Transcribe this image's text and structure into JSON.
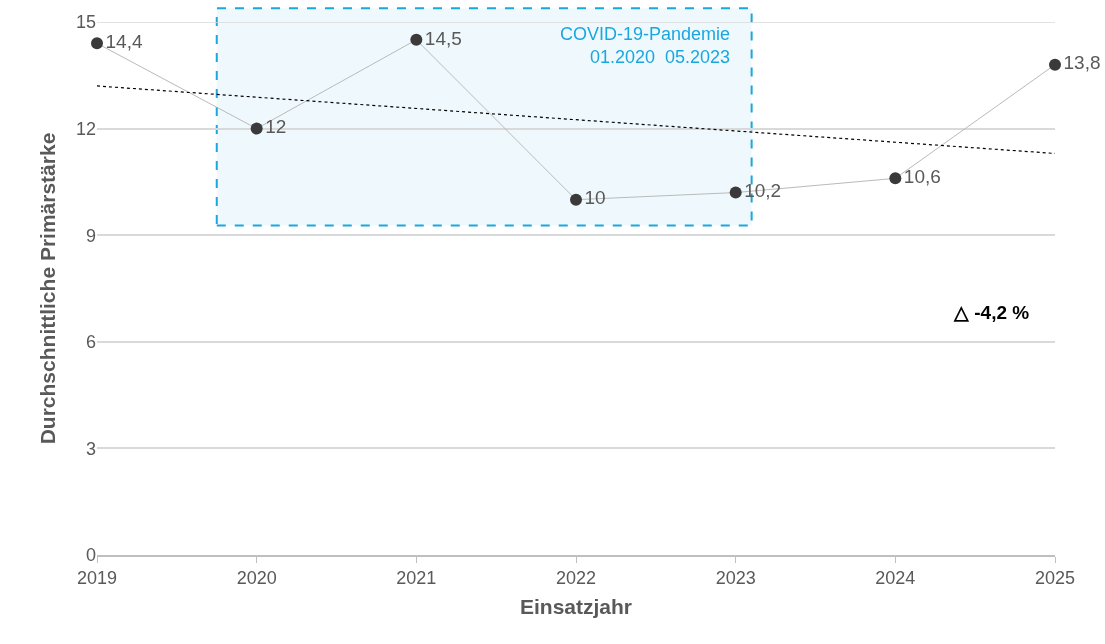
{
  "chart_data": {
    "type": "line",
    "xlabel": "Einsatzjahr",
    "ylabel": "Durchschnittliche Primärstärke",
    "x": [
      2019,
      2020,
      2021,
      2022,
      2023,
      2024,
      2025
    ],
    "xlim": [
      2019,
      2025
    ],
    "xticks": [
      2019,
      2020,
      2021,
      2022,
      2023,
      2024,
      2025
    ],
    "ylim": [
      0,
      15
    ],
    "yticks": [
      0,
      3,
      6,
      9,
      12,
      15
    ],
    "grid": "y",
    "marker": "circle",
    "series": [
      {
        "color": "#3a3a3a",
        "values": [
          14.4,
          12,
          14.5,
          10,
          10.2,
          10.6,
          13.8
        ],
        "value_labels": [
          "14,4",
          "12",
          "14,5",
          "10",
          "10,2",
          "10,6",
          "13,8"
        ]
      },
      {
        "type": "line",
        "x": [
          2019,
          2025
        ],
        "values": [
          13.2,
          11.3
        ],
        "color": "#000000",
        "line_style": "dotted",
        "marker": "none"
      }
    ],
    "bands": [
      {
        "axis": "x",
        "from": 2019.75,
        "to": 2023.1,
        "label": "COVID-19-Pandemie\n01.2020  05.2023",
        "color": "#1aa7e0"
      }
    ],
    "annotations": [
      "△ -4,2 %"
    ]
  }
}
